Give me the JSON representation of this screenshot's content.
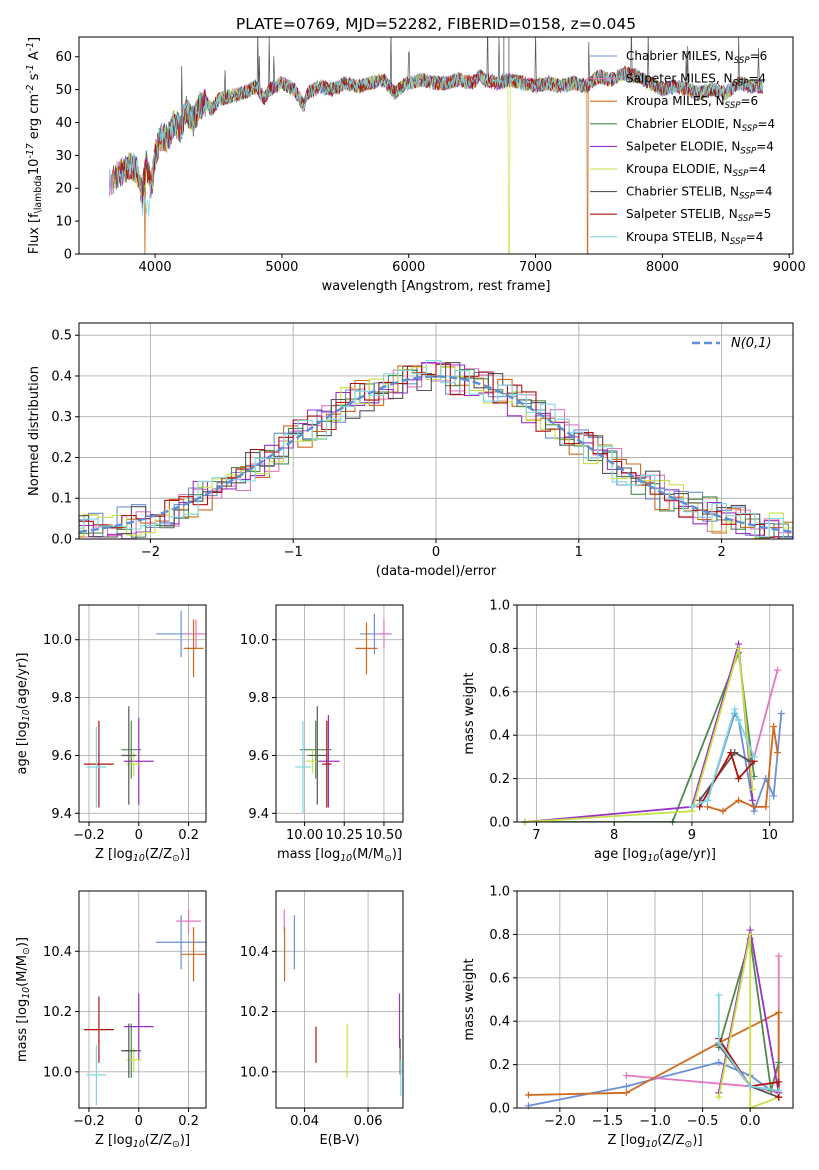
{
  "title": "PLATE=0769, MJD=52282, FIBERID=0158, z=0.045",
  "colors": {
    "chabrier_miles": "#6a8fd8",
    "salpeter_miles": "#e377c2",
    "kroupa_miles": "#d2691e",
    "chabrier_elodie": "#4f8a4f",
    "salpeter_elodie": "#9b30c8",
    "kroupa_elodie": "#c8e048",
    "chabrier_stelib": "#555555",
    "salpeter_stelib": "#b01010",
    "kroupa_stelib": "#7fd8e0",
    "grid": "#b0b0b0",
    "gauss": "#5b8fd9"
  },
  "chart_data": [
    {
      "id": "spectrum",
      "type": "line",
      "xlabel": "wavelength [Angstrom, rest frame]",
      "ylabel": "Flux [f$_\\lambda$10$^{-17}$ erg cm$^{-2}$ s$^{-1}$ A$^{-1}$]",
      "xlim": [
        3400,
        9030
      ],
      "ylim": [
        0,
        66
      ],
      "xticks": [
        4000,
        5000,
        6000,
        7000,
        8000,
        9000
      ],
      "yticks": [
        0,
        10,
        20,
        30,
        40,
        50,
        60
      ],
      "legend": [
        {
          "key": "chabrier_miles",
          "label": "Chabrier MILES, N$_{SSP}$=6"
        },
        {
          "key": "salpeter_miles",
          "label": "Salpeter MILES, N$_{SSP}$=4"
        },
        {
          "key": "kroupa_miles",
          "label": "Kroupa MILES, N$_{SSP}$=6"
        },
        {
          "key": "chabrier_elodie",
          "label": "Chabrier ELODIE, N$_{SSP}$=4"
        },
        {
          "key": "salpeter_elodie",
          "label": "Salpeter ELODIE, N$_{SSP}$=4"
        },
        {
          "key": "kroupa_elodie",
          "label": "Kroupa ELODIE, N$_{SSP}$=4"
        },
        {
          "key": "chabrier_stelib",
          "label": "Chabrier STELIB, N$_{SSP}$=4"
        },
        {
          "key": "salpeter_stelib",
          "label": "Salpeter STELIB, N$_{SSP}$=5"
        },
        {
          "key": "kroupa_stelib",
          "label": "Kroupa STELIB, N$_{SSP}$=4"
        }
      ],
      "legend_loc": "upper right",
      "spectrum_points": [
        [
          3650,
          22
        ],
        [
          3700,
          24
        ],
        [
          3750,
          25
        ],
        [
          3800,
          27
        ],
        [
          3850,
          26
        ],
        [
          3900,
          18
        ],
        [
          3930,
          28
        ],
        [
          3970,
          20
        ],
        [
          4000,
          30
        ],
        [
          4050,
          36
        ],
        [
          4100,
          35
        ],
        [
          4150,
          40
        ],
        [
          4200,
          38
        ],
        [
          4250,
          44
        ],
        [
          4300,
          40
        ],
        [
          4350,
          45
        ],
        [
          4400,
          46
        ],
        [
          4450,
          44
        ],
        [
          4500,
          47
        ],
        [
          4600,
          48
        ],
        [
          4700,
          49
        ],
        [
          4800,
          51
        ],
        [
          4860,
          47
        ],
        [
          4900,
          50
        ],
        [
          5000,
          52
        ],
        [
          5100,
          50
        ],
        [
          5175,
          45
        ],
        [
          5200,
          49
        ],
        [
          5300,
          51
        ],
        [
          5400,
          50
        ],
        [
          5500,
          52
        ],
        [
          5600,
          51
        ],
        [
          5700,
          52
        ],
        [
          5800,
          53
        ],
        [
          5890,
          49
        ],
        [
          5950,
          51
        ],
        [
          6000,
          52
        ],
        [
          6100,
          53
        ],
        [
          6200,
          52
        ],
        [
          6300,
          52
        ],
        [
          6400,
          53
        ],
        [
          6500,
          52
        ],
        [
          6563,
          54
        ],
        [
          6600,
          53
        ],
        [
          6700,
          52
        ],
        [
          6800,
          53
        ],
        [
          6900,
          52
        ],
        [
          7000,
          51
        ],
        [
          7100,
          52
        ],
        [
          7200,
          51
        ],
        [
          7300,
          52
        ],
        [
          7400,
          51
        ],
        [
          7500,
          54
        ],
        [
          7600,
          53
        ],
        [
          7700,
          55
        ],
        [
          7800,
          54
        ],
        [
          7900,
          52
        ],
        [
          8000,
          50
        ],
        [
          8100,
          51
        ],
        [
          8200,
          50
        ],
        [
          8300,
          49
        ],
        [
          8400,
          50
        ],
        [
          8500,
          49
        ],
        [
          8600,
          52
        ],
        [
          8700,
          51
        ],
        [
          8800,
          51
        ]
      ],
      "dropouts": [
        {
          "key": "kroupa_miles",
          "x": 3920
        },
        {
          "key": "kroupa_elodie",
          "x": 6790
        },
        {
          "key": "kroupa_miles",
          "x": 7410
        }
      ],
      "spikes": [
        {
          "x": 6750,
          "y": 66
        },
        {
          "x": 6790,
          "y": 66
        }
      ]
    },
    {
      "id": "residuals",
      "type": "histogram",
      "xlabel": "(data-model)/error",
      "ylabel": "Normed distribution",
      "xlim": [
        -2.5,
        2.5
      ],
      "ylim": [
        0,
        0.53
      ],
      "xticks": [
        -2,
        -1,
        0,
        1,
        2
      ],
      "yticks": [
        0.0,
        0.1,
        0.2,
        0.3,
        0.4,
        0.5
      ],
      "legend": "$\\mathcal{N}(0,1)$",
      "legend_loc": "upper right",
      "bin_width": 0.1
    },
    {
      "id": "age_vs_Z",
      "type": "scatter",
      "xlabel": "Z [log$_{10}$(Z/Z$_\\odot$)]",
      "ylabel": "age  [log$_{10}$(age/yr)]",
      "xlim": [
        -0.24,
        0.27
      ],
      "ylim": [
        9.37,
        10.12
      ],
      "xticks": [
        -0.2,
        0.0,
        0.2
      ],
      "yticks": [
        9.4,
        9.6,
        9.8,
        10.0
      ],
      "points": [
        {
          "key": "chabrier_miles",
          "x": 0.17,
          "y": 10.02,
          "xerr": 0.1,
          "yerr": 0.08
        },
        {
          "key": "salpeter_miles",
          "x": 0.23,
          "y": 10.02,
          "xerr": 0.05,
          "yerr": 0.05
        },
        {
          "key": "kroupa_miles",
          "x": 0.22,
          "y": 9.97,
          "xerr": 0.04,
          "yerr": 0.1
        },
        {
          "key": "chabrier_elodie",
          "x": -0.03,
          "y": 9.62,
          "xerr": 0.04,
          "yerr": 0.1
        },
        {
          "key": "salpeter_elodie",
          "x": 0.0,
          "y": 9.58,
          "xerr": 0.06,
          "yerr": 0.15
        },
        {
          "key": "kroupa_elodie",
          "x": -0.02,
          "y": 9.57,
          "xerr": 0.03,
          "yerr": 0.04
        },
        {
          "key": "chabrier_stelib",
          "x": -0.04,
          "y": 9.6,
          "xerr": 0.03,
          "yerr": 0.17
        },
        {
          "key": "salpeter_stelib",
          "x": -0.16,
          "y": 9.57,
          "xerr": 0.06,
          "yerr": 0.15
        },
        {
          "key": "kroupa_stelib",
          "x": -0.17,
          "y": 9.56,
          "xerr": 0.04,
          "yerr": 0.14
        }
      ]
    },
    {
      "id": "age_vs_mass",
      "type": "scatter",
      "xlabel": "mass [log$_{10}$(M/M$_\\odot$)]",
      "ylabel": "",
      "xlim": [
        9.82,
        10.62
      ],
      "ylim": [
        9.37,
        10.12
      ],
      "xticks": [
        10.0,
        10.25,
        10.5
      ],
      "xtick_labels": [
        "10.00",
        "10.25",
        "10.50"
      ],
      "yticks": [
        9.4,
        9.6,
        9.8,
        10.0
      ],
      "points": [
        {
          "key": "chabrier_miles",
          "x": 10.44,
          "y": 10.02,
          "xerr": 0.09,
          "yerr": 0.07
        },
        {
          "key": "salpeter_miles",
          "x": 10.5,
          "y": 10.02,
          "xerr": 0.05,
          "yerr": 0.05
        },
        {
          "key": "kroupa_miles",
          "x": 10.39,
          "y": 9.97,
          "xerr": 0.07,
          "yerr": 0.09
        },
        {
          "key": "chabrier_elodie",
          "x": 10.07,
          "y": 9.62,
          "xerr": 0.1,
          "yerr": 0.1
        },
        {
          "key": "salpeter_elodie",
          "x": 10.15,
          "y": 9.58,
          "xerr": 0.07,
          "yerr": 0.16
        },
        {
          "key": "kroupa_elodie",
          "x": 10.05,
          "y": 9.58,
          "xerr": 0.04,
          "yerr": 0.04
        },
        {
          "key": "chabrier_stelib",
          "x": 10.08,
          "y": 9.6,
          "xerr": 0.06,
          "yerr": 0.17
        },
        {
          "key": "salpeter_stelib",
          "x": 10.14,
          "y": 9.57,
          "xerr": 0.03,
          "yerr": 0.15
        },
        {
          "key": "kroupa_stelib",
          "x": 9.99,
          "y": 9.56,
          "xerr": 0.05,
          "yerr": 0.16
        }
      ]
    },
    {
      "id": "massweight_vs_age",
      "type": "line",
      "xlabel": "age  [log$_{10}$(age/yr)]",
      "ylabel": "mass weight",
      "xlim": [
        6.75,
        10.3
      ],
      "ylim": [
        0,
        1.0
      ],
      "xticks": [
        7,
        8,
        9,
        10
      ],
      "yticks": [
        0.0,
        0.2,
        0.4,
        0.6,
        0.8,
        1.0
      ],
      "series": [
        {
          "key": "chabrier_miles",
          "x": [
            9.2,
            9.55,
            9.6,
            9.8,
            9.95,
            10.05,
            10.15
          ],
          "y": [
            0.1,
            0.5,
            0.47,
            0.05,
            0.2,
            0.12,
            0.5
          ]
        },
        {
          "key": "salpeter_miles",
          "x": [
            9.8,
            10.1
          ],
          "y": [
            0.3,
            0.7
          ]
        },
        {
          "key": "kroupa_miles",
          "x": [
            9.2,
            9.4,
            9.6,
            9.8,
            9.95,
            10.05,
            10.1
          ],
          "y": [
            0.07,
            0.05,
            0.1,
            0.07,
            0.07,
            0.44,
            0.32
          ]
        },
        {
          "key": "chabrier_elodie",
          "x": [
            6.85,
            8.75,
            9.6,
            9.8
          ],
          "y": [
            0.0,
            0.0,
            0.78,
            0.21
          ]
        },
        {
          "key": "salpeter_elodie",
          "x": [
            6.85,
            9.0,
            9.6,
            9.78
          ],
          "y": [
            0.0,
            0.07,
            0.82,
            0.1
          ]
        },
        {
          "key": "kroupa_elodie",
          "x": [
            6.85,
            9.0,
            9.6,
            9.78
          ],
          "y": [
            0.0,
            0.05,
            0.8,
            0.15
          ]
        },
        {
          "key": "chabrier_stelib",
          "x": [
            9.1,
            9.55,
            9.75
          ],
          "y": [
            0.1,
            0.32,
            0.28
          ]
        },
        {
          "key": "salpeter_stelib",
          "x": [
            9.1,
            9.5,
            9.6,
            9.8
          ],
          "y": [
            0.07,
            0.32,
            0.2,
            0.28
          ]
        },
        {
          "key": "kroupa_stelib",
          "x": [
            9.0,
            9.2,
            9.55,
            9.6,
            9.8
          ],
          "y": [
            0.07,
            0.1,
            0.52,
            0.47,
            0.3
          ]
        }
      ]
    },
    {
      "id": "mass_vs_Z",
      "type": "scatter",
      "xlabel": "Z [log$_{10}$(Z/Z$_\\odot$)]",
      "ylabel": "mass [log$_{10}$(M/M$_\\odot$)]",
      "xlim": [
        -0.24,
        0.27
      ],
      "ylim": [
        9.88,
        10.6
      ],
      "xticks": [
        -0.2,
        0.0,
        0.2
      ],
      "yticks": [
        10.0,
        10.2,
        10.4
      ],
      "points": [
        {
          "key": "chabrier_miles",
          "x": 0.17,
          "y": 10.43,
          "xerr": 0.1,
          "yerr": 0.09
        },
        {
          "key": "salpeter_miles",
          "x": 0.2,
          "y": 10.5,
          "xerr": 0.05,
          "yerr": 0.04
        },
        {
          "key": "kroupa_miles",
          "x": 0.22,
          "y": 10.39,
          "xerr": 0.05,
          "yerr": 0.09
        },
        {
          "key": "chabrier_elodie",
          "x": -0.03,
          "y": 10.07,
          "xerr": 0.04,
          "yerr": 0.09
        },
        {
          "key": "salpeter_elodie",
          "x": 0.0,
          "y": 10.15,
          "xerr": 0.06,
          "yerr": 0.11
        },
        {
          "key": "kroupa_elodie",
          "x": -0.02,
          "y": 10.04,
          "xerr": 0.03,
          "yerr": 0.04
        },
        {
          "key": "chabrier_stelib",
          "x": -0.04,
          "y": 10.07,
          "xerr": 0.03,
          "yerr": 0.09
        },
        {
          "key": "salpeter_stelib",
          "x": -0.16,
          "y": 10.14,
          "xerr": 0.06,
          "yerr": 0.11
        },
        {
          "key": "kroupa_stelib",
          "x": -0.17,
          "y": 9.99,
          "xerr": 0.04,
          "yerr": 0.1
        }
      ]
    },
    {
      "id": "mass_vs_ebv",
      "type": "scatter",
      "xlabel": "E(B-V)",
      "ylabel": "",
      "xlim": [
        0.031,
        0.071
      ],
      "ylim": [
        9.88,
        10.6
      ],
      "xticks": [
        0.04,
        0.06
      ],
      "xtick_labels": [
        "0.04",
        "0.06"
      ],
      "yticks": [
        10.0,
        10.2,
        10.4
      ],
      "points": [
        {
          "key": "chabrier_miles",
          "x": 0.0368,
          "y": 10.43,
          "xerr": 0,
          "yerr": 0.09
        },
        {
          "key": "salpeter_miles",
          "x": 0.0336,
          "y": 10.5,
          "xerr": 0,
          "yerr": 0.04
        },
        {
          "key": "kroupa_miles",
          "x": 0.0337,
          "y": 10.39,
          "xerr": 0,
          "yerr": 0.09
        },
        {
          "key": "kroupa_elodie",
          "x": 0.0534,
          "y": 10.07,
          "xerr": 0,
          "yerr": 0.09
        },
        {
          "key": "salpeter_stelib",
          "x": 0.0436,
          "y": 10.09,
          "xerr": 0,
          "yerr": 0.06
        },
        {
          "key": "salpeter_elodie",
          "x": 0.0699,
          "y": 10.17,
          "xerr": 0,
          "yerr": 0.09
        },
        {
          "key": "chabrier_stelib",
          "x": 0.0701,
          "y": 10.05,
          "xerr": 0,
          "yerr": 0.06
        },
        {
          "key": "kroupa_stelib",
          "x": 0.0703,
          "y": 9.98,
          "xerr": 0,
          "yerr": 0.06
        }
      ]
    },
    {
      "id": "massweight_vs_Z",
      "type": "line",
      "xlabel": "Z [log$_{10}$(Z/Z$_\\odot$)]",
      "ylabel": "mass weight",
      "xlim": [
        -2.45,
        0.45
      ],
      "ylim": [
        0,
        1.0
      ],
      "xticks": [
        -2.0,
        -1.5,
        -1.0,
        -0.5,
        0.0
      ],
      "xtick_labels": [
        "−2.0",
        "−1.5",
        "−1.0",
        "−0.5",
        "0.0"
      ],
      "yticks": [
        0.0,
        0.2,
        0.4,
        0.6,
        0.8,
        1.0
      ],
      "series": [
        {
          "key": "chabrier_miles",
          "x": [
            -2.33,
            -1.3,
            -0.33,
            0.0,
            0.22,
            0.3
          ],
          "y": [
            0.01,
            0.1,
            0.21,
            0.15,
            0.08,
            0.07
          ]
        },
        {
          "key": "salpeter_miles",
          "x": [
            -1.3,
            0.0,
            0.3,
            0.3
          ],
          "y": [
            0.15,
            0.1,
            0.07,
            0.7
          ]
        },
        {
          "key": "kroupa_miles",
          "x": [
            -2.33,
            -1.3,
            -0.33,
            0.3,
            0.3
          ],
          "y": [
            0.06,
            0.07,
            0.3,
            0.44,
            0.05
          ]
        },
        {
          "key": "chabrier_elodie",
          "x": [
            -0.33,
            0.0,
            0.22,
            0.3
          ],
          "y": [
            0.28,
            0.78,
            0.08,
            0.21
          ]
        },
        {
          "key": "salpeter_elodie",
          "x": [
            -0.33,
            0.0,
            0.3
          ],
          "y": [
            0.07,
            0.82,
            0.07
          ]
        },
        {
          "key": "kroupa_elodie",
          "x": [
            -0.33,
            0.0,
            0.0,
            0.3
          ],
          "y": [
            0.05,
            0.8,
            0.0,
            0.05
          ]
        },
        {
          "key": "chabrier_stelib",
          "x": [
            -0.33,
            0.0,
            0.3
          ],
          "y": [
            0.29,
            0.1,
            0.05
          ]
        },
        {
          "key": "salpeter_stelib",
          "x": [
            -0.33,
            0.0,
            0.3,
            0.3
          ],
          "y": [
            0.32,
            0.1,
            0.12,
            0.05
          ]
        },
        {
          "key": "kroupa_stelib",
          "x": [
            -0.33,
            -0.33,
            0.0,
            0.3
          ],
          "y": [
            0.52,
            0.3,
            0.1,
            0.08
          ]
        }
      ]
    }
  ]
}
